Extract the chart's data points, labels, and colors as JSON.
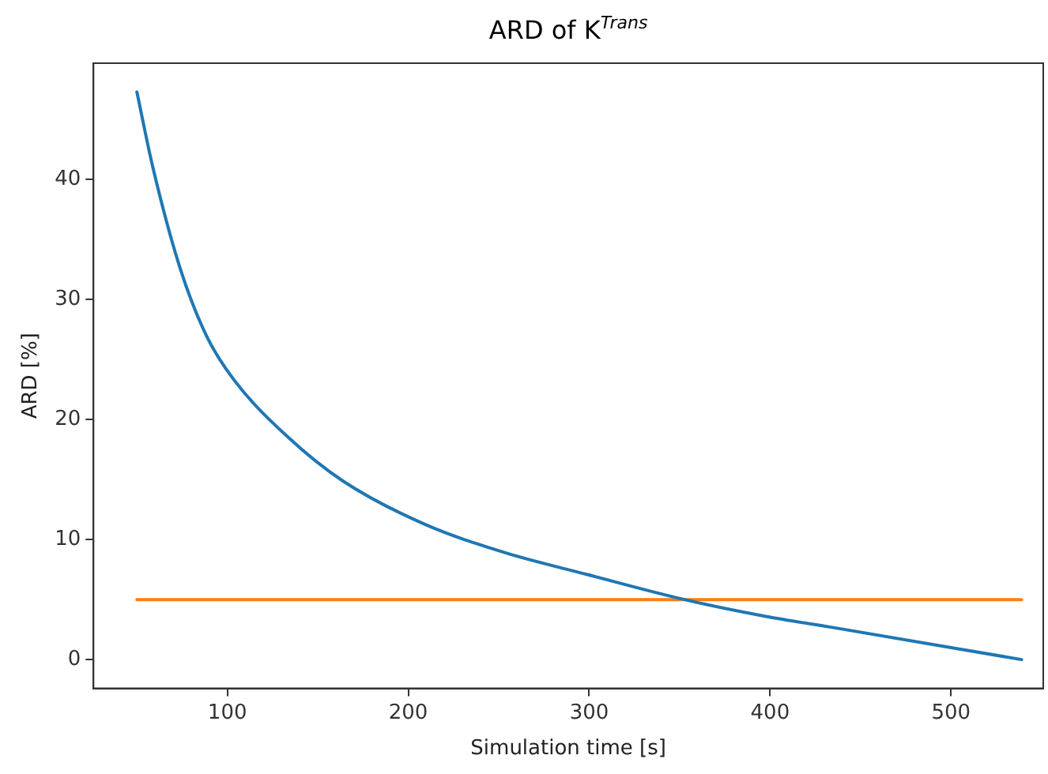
{
  "chart_data": {
    "type": "line",
    "title": "ARD of K$^{Trans}$",
    "xlabel": "Simulation time [s]",
    "ylabel": "ARD [%]",
    "series": [
      {
        "color": "#1f77b4",
        "x": [
          50,
          58.7,
          73.7,
          88.7,
          103.7,
          133.8,
          163.7,
          208.7,
          253.7,
          298.7,
          352.7,
          397.7,
          433.8,
          539
        ],
        "values": [
          47.3,
          41.1,
          32.7,
          26.9,
          23.3,
          18.5,
          14.9,
          11.3,
          8.9,
          7.1,
          5,
          3.6,
          2.7,
          0
        ]
      },
      {
        "color": "#ff7f0e",
        "x": [
          50,
          539
        ],
        "values": [
          5,
          5
        ]
      }
    ],
    "xlim": [
      26,
      551
    ],
    "xticks": [
      100,
      200,
      300,
      400,
      500
    ],
    "ylim": [
      -2.4,
      49.7
    ],
    "yticks": [
      0,
      10,
      20,
      30,
      40
    ],
    "grid": false,
    "legend": false,
    "marker": "none",
    "line_style": "solid"
  }
}
